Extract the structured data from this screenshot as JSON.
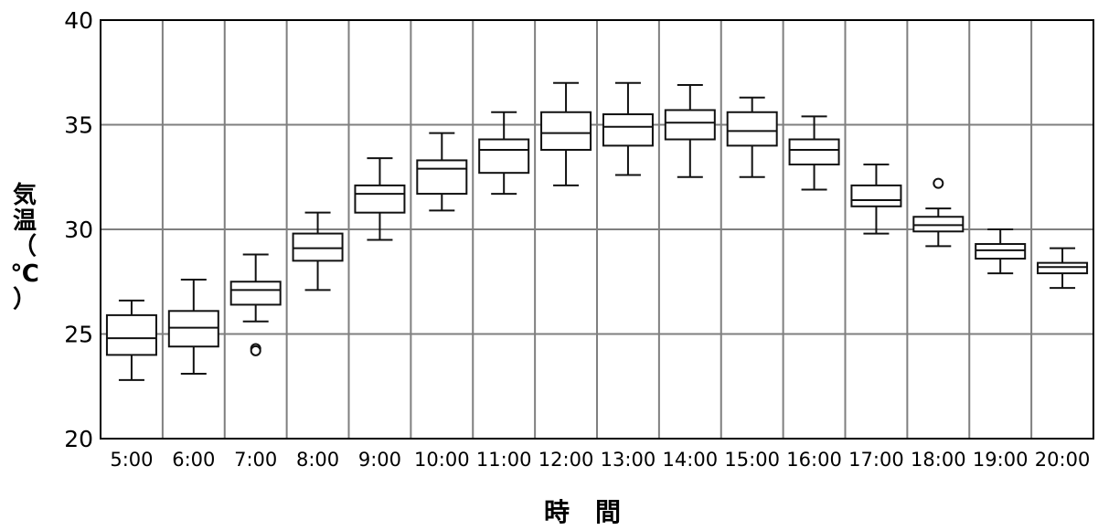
{
  "chart_data": {
    "type": "box",
    "title": "",
    "xlabel": "時　間",
    "ylabel_chars": [
      "気",
      "温",
      "（",
      "℃",
      "）"
    ],
    "ylim": [
      20,
      40
    ],
    "yticks": [
      20,
      25,
      30,
      35,
      40
    ],
    "grid": true,
    "categories": [
      "5:00",
      "6:00",
      "7:00",
      "8:00",
      "9:00",
      "10:00",
      "11:00",
      "12:00",
      "13:00",
      "14:00",
      "15:00",
      "16:00",
      "17:00",
      "18:00",
      "19:00",
      "20:00"
    ],
    "boxes": [
      {
        "category": "5:00",
        "min": 22.8,
        "q1": 24.0,
        "median": 24.8,
        "q3": 25.9,
        "max": 26.6,
        "outliers": []
      },
      {
        "category": "6:00",
        "min": 23.1,
        "q1": 24.4,
        "median": 25.3,
        "q3": 26.1,
        "max": 27.6,
        "outliers": []
      },
      {
        "category": "7:00",
        "min": 25.6,
        "q1": 26.4,
        "median": 27.1,
        "q3": 27.5,
        "max": 28.8,
        "outliers": [
          24.3,
          24.2
        ]
      },
      {
        "category": "8:00",
        "min": 27.1,
        "q1": 28.5,
        "median": 29.1,
        "q3": 29.8,
        "max": 30.8,
        "outliers": []
      },
      {
        "category": "9:00",
        "min": 29.5,
        "q1": 30.8,
        "median": 31.7,
        "q3": 32.1,
        "max": 33.4,
        "outliers": []
      },
      {
        "category": "10:00",
        "min": 30.9,
        "q1": 31.7,
        "median": 32.9,
        "q3": 33.3,
        "max": 34.6,
        "outliers": []
      },
      {
        "category": "11:00",
        "min": 31.7,
        "q1": 32.7,
        "median": 33.8,
        "q3": 34.3,
        "max": 35.6,
        "outliers": []
      },
      {
        "category": "12:00",
        "min": 32.1,
        "q1": 33.8,
        "median": 34.6,
        "q3": 35.6,
        "max": 37.0,
        "outliers": []
      },
      {
        "category": "13:00",
        "min": 32.6,
        "q1": 34.0,
        "median": 34.9,
        "q3": 35.5,
        "max": 37.0,
        "outliers": []
      },
      {
        "category": "14:00",
        "min": 32.5,
        "q1": 34.3,
        "median": 35.1,
        "q3": 35.7,
        "max": 36.9,
        "outliers": []
      },
      {
        "category": "15:00",
        "min": 32.5,
        "q1": 34.0,
        "median": 34.7,
        "q3": 35.6,
        "max": 36.3,
        "outliers": []
      },
      {
        "category": "16:00",
        "min": 31.9,
        "q1": 33.1,
        "median": 33.8,
        "q3": 34.3,
        "max": 35.4,
        "outliers": []
      },
      {
        "category": "17:00",
        "min": 29.8,
        "q1": 31.1,
        "median": 31.4,
        "q3": 32.1,
        "max": 33.1,
        "outliers": []
      },
      {
        "category": "18:00",
        "min": 29.2,
        "q1": 29.9,
        "median": 30.2,
        "q3": 30.6,
        "max": 31.0,
        "outliers": [
          32.2
        ]
      },
      {
        "category": "19:00",
        "min": 27.9,
        "q1": 28.6,
        "median": 29.0,
        "q3": 29.3,
        "max": 30.0,
        "outliers": []
      },
      {
        "category": "20:00",
        "min": 27.2,
        "q1": 27.9,
        "median": 28.2,
        "q3": 28.4,
        "max": 29.1,
        "outliers": []
      }
    ]
  }
}
